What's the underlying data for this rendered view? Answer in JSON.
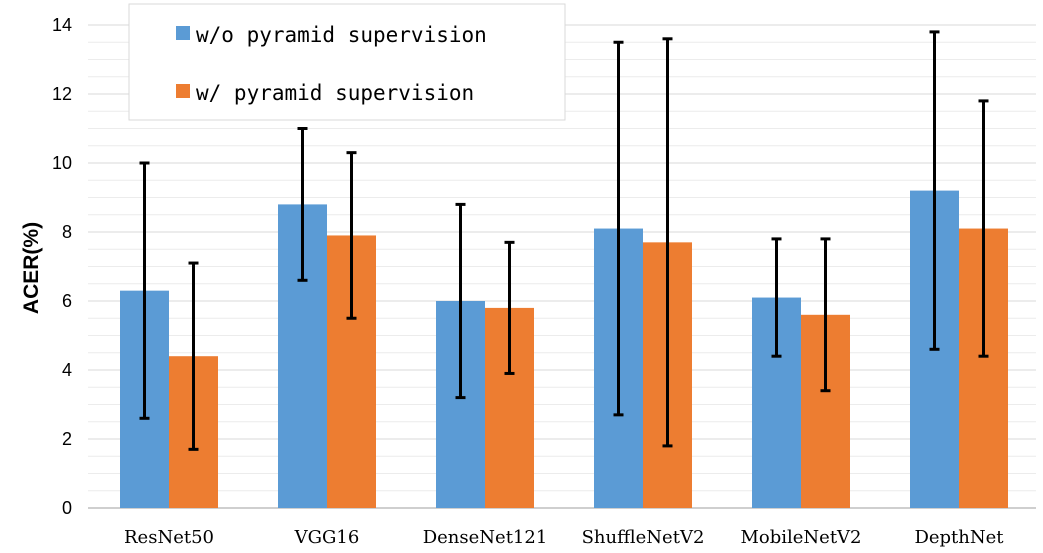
{
  "chart_data": {
    "type": "bar",
    "title": "",
    "xlabel": "",
    "ylabel": "ACER(%)",
    "ylim": [
      0,
      14
    ],
    "yticks": [
      "0",
      "2",
      "4",
      "6",
      "8",
      "10",
      "12",
      "14"
    ],
    "categories": [
      "ResNet50",
      "VGG16",
      "DenseNet121",
      "ShuffleNetV2",
      "MobileNetV2",
      "DepthNet"
    ],
    "grid": true,
    "legend_position": "top-left",
    "series": [
      {
        "name": "w/o pyramid supervision",
        "color": "#5b9bd5",
        "values": [
          6.3,
          8.8,
          6.0,
          8.1,
          6.1,
          9.2
        ],
        "error_low": [
          2.6,
          6.6,
          3.2,
          2.7,
          4.4,
          4.6
        ],
        "error_high": [
          10.0,
          11.0,
          8.8,
          13.5,
          7.8,
          13.8
        ]
      },
      {
        "name": "w/ pyramid supervision",
        "color": "#ed7d31",
        "values": [
          4.4,
          7.9,
          5.8,
          7.7,
          5.6,
          8.1
        ],
        "error_low": [
          1.7,
          5.5,
          3.9,
          1.8,
          3.4,
          4.4
        ],
        "error_high": [
          7.1,
          10.3,
          7.7,
          13.6,
          7.8,
          11.8
        ]
      }
    ]
  }
}
